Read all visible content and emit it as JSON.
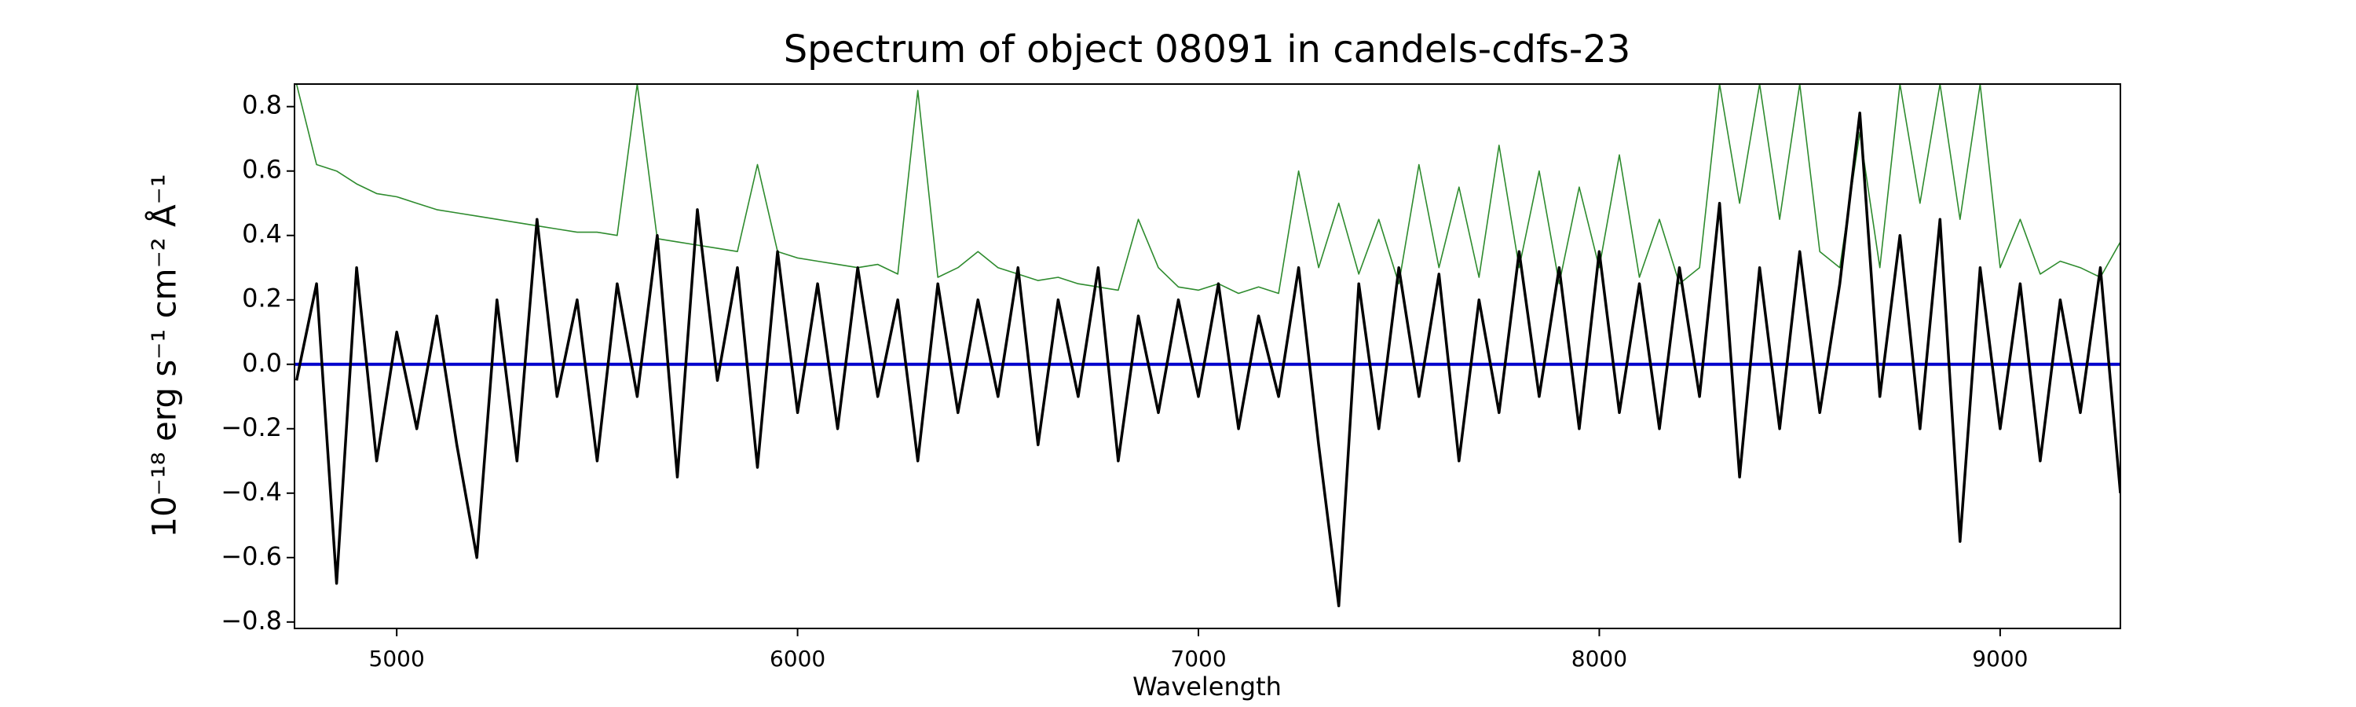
{
  "chart_data": {
    "type": "line",
    "title": "Spectrum of object 08091 in candels-cdfs-23",
    "x_label": "Wavelength",
    "y_label": "10⁻¹⁸ erg s⁻¹ cm⁻² Å⁻¹",
    "x": [
      4750,
      4800,
      4850,
      4900,
      4950,
      5000,
      5050,
      5100,
      5150,
      5200,
      5250,
      5300,
      5350,
      5400,
      5450,
      5500,
      5550,
      5600,
      5650,
      5700,
      5750,
      5800,
      5850,
      5900,
      5950,
      6000,
      6050,
      6100,
      6150,
      6200,
      6250,
      6300,
      6350,
      6400,
      6450,
      6500,
      6550,
      6600,
      6650,
      6700,
      6750,
      6800,
      6850,
      6900,
      6950,
      7000,
      7050,
      7100,
      7150,
      7200,
      7250,
      7300,
      7350,
      7400,
      7450,
      7500,
      7550,
      7600,
      7650,
      7700,
      7750,
      7800,
      7850,
      7900,
      7950,
      8000,
      8050,
      8100,
      8150,
      8200,
      8250,
      8300,
      8350,
      8400,
      8450,
      8500,
      8550,
      8600,
      8650,
      8700,
      8750,
      8800,
      8850,
      8900,
      8950,
      9000,
      9050,
      9100,
      9150,
      9200,
      9250,
      9300
    ],
    "series": [
      {
        "color": "#2e8b2e",
        "width": 1.6,
        "values": [
          0.87,
          0.62,
          0.6,
          0.56,
          0.53,
          0.52,
          0.5,
          0.48,
          0.47,
          0.46,
          0.45,
          0.44,
          0.43,
          0.42,
          0.41,
          0.41,
          0.4,
          0.87,
          0.39,
          0.38,
          0.37,
          0.36,
          0.35,
          0.62,
          0.35,
          0.33,
          0.32,
          0.31,
          0.3,
          0.31,
          0.28,
          0.85,
          0.27,
          0.3,
          0.35,
          0.3,
          0.28,
          0.26,
          0.27,
          0.25,
          0.24,
          0.23,
          0.45,
          0.3,
          0.24,
          0.23,
          0.25,
          0.22,
          0.24,
          0.22,
          0.6,
          0.3,
          0.5,
          0.28,
          0.45,
          0.25,
          0.62,
          0.3,
          0.55,
          0.27,
          0.68,
          0.3,
          0.6,
          0.25,
          0.55,
          0.3,
          0.65,
          0.27,
          0.45,
          0.25,
          0.3,
          0.87,
          0.5,
          0.87,
          0.45,
          0.87,
          0.35,
          0.3,
          0.72,
          0.3,
          0.87,
          0.5,
          0.87,
          0.45,
          0.87,
          0.3,
          0.45,
          0.28,
          0.32,
          0.3,
          0.27,
          0.38
        ]
      },
      {
        "color": "#0000cc",
        "width": 4,
        "x": [
          4745,
          9300
        ],
        "values": [
          0,
          0
        ]
      },
      {
        "color": "#000000",
        "width": 3.5,
        "values": [
          -0.05,
          0.25,
          -0.68,
          0.3,
          -0.3,
          0.1,
          -0.2,
          0.15,
          -0.25,
          -0.6,
          0.2,
          -0.3,
          0.45,
          -0.1,
          0.2,
          -0.3,
          0.25,
          -0.1,
          0.4,
          -0.35,
          0.48,
          -0.05,
          0.3,
          -0.32,
          0.35,
          -0.15,
          0.25,
          -0.2,
          0.3,
          -0.1,
          0.2,
          -0.3,
          0.25,
          -0.15,
          0.2,
          -0.1,
          0.3,
          -0.25,
          0.2,
          -0.1,
          0.3,
          -0.3,
          0.15,
          -0.15,
          0.2,
          -0.1,
          0.25,
          -0.2,
          0.15,
          -0.1,
          0.3,
          -0.25,
          -0.75,
          0.25,
          -0.2,
          0.3,
          -0.1,
          0.28,
          -0.3,
          0.2,
          -0.15,
          0.35,
          -0.1,
          0.3,
          -0.2,
          0.35,
          -0.15,
          0.25,
          -0.2,
          0.3,
          -0.1,
          0.5,
          -0.35,
          0.3,
          -0.2,
          0.35,
          -0.15,
          0.25,
          0.78,
          -0.1,
          0.4,
          -0.2,
          0.45,
          -0.55,
          0.3,
          -0.2,
          0.25,
          -0.3,
          0.2,
          -0.15,
          0.3,
          -0.4
        ]
      }
    ],
    "xlim": [
      4745,
      9300
    ],
    "ylim": [
      -0.82,
      0.87
    ],
    "xticks": [
      5000,
      6000,
      7000,
      8000,
      9000
    ],
    "yticks": [
      {
        "value": -0.8,
        "label": "−0.8"
      },
      {
        "value": -0.6,
        "label": "−0.6"
      },
      {
        "value": -0.4,
        "label": "−0.4"
      },
      {
        "value": -0.2,
        "label": "−0.2"
      },
      {
        "value": 0,
        "label": "0.0"
      },
      {
        "value": 0.2,
        "label": "0.2"
      },
      {
        "value": 0.4,
        "label": "0.4"
      },
      {
        "value": 0.6,
        "label": "0.6"
      },
      {
        "value": 0.8,
        "label": "0.8"
      }
    ]
  }
}
